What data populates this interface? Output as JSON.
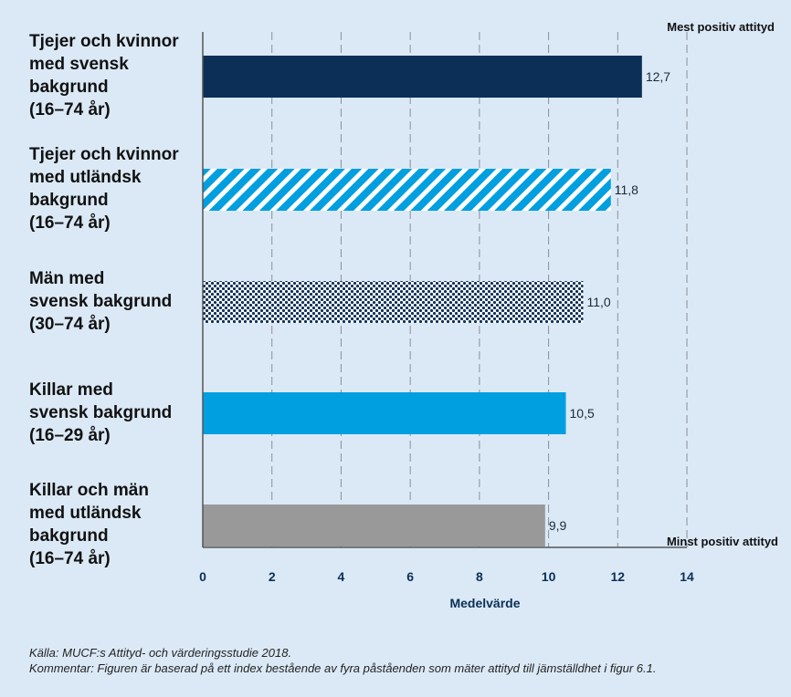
{
  "chart_data": {
    "type": "bar",
    "orientation": "horizontal",
    "categories": [
      "Tjejer och kvinnor\nmed svensk\nbakgrund\n(16–74 år)",
      "Tjejer och kvinnor\nmed utländsk\nbakgrund\n(16–74 år)",
      "Män med\nsvensk bakgrund\n(30–74 år)",
      "Killar med\nsvensk bakgrund\n(16–29 år)",
      "Killar och män\nmed utländsk\nbakgrund\n(16–74 år)"
    ],
    "values": [
      12.7,
      11.8,
      11.0,
      10.5,
      9.9
    ],
    "value_labels": [
      "12,7",
      "11,8",
      "11,0",
      "10,5",
      "9,9"
    ],
    "bar_styles": [
      "solid",
      "diagonal-stripes",
      "dots",
      "solid",
      "solid"
    ],
    "bar_colors": [
      "#0b2f57",
      "#009fe0",
      "#0b2f57",
      "#009fe0",
      "#999999"
    ],
    "xlabel": "Medelvärde",
    "xlim": [
      0,
      14
    ],
    "xticks": [
      0,
      2,
      4,
      6,
      8,
      10,
      12,
      14
    ],
    "grid": "vertical-dashed",
    "annotation_top": "Mest positiv attityd",
    "annotation_bottom": "Minst positiv attityd"
  },
  "footer": {
    "source": "Källa: MUCF:s Attityd- och värderingsstudie 2018.",
    "comment": "Kommentar: Figuren är baserad på ett index bestående av fyra påståenden som mäter attityd till jämställdhet i figur 6.1."
  },
  "colors": {
    "background": "#dbe9f6",
    "axis": "#555555",
    "grid": "#8a8f96",
    "tick_label": "#0b2f57"
  }
}
